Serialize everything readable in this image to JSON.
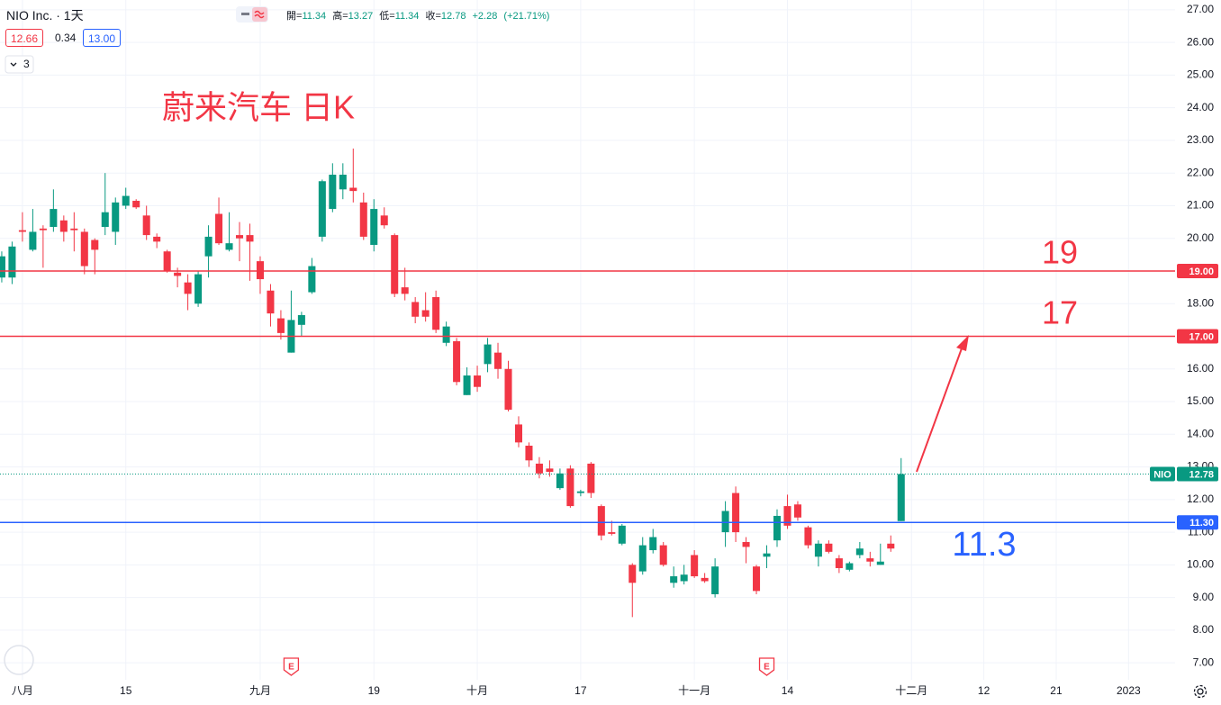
{
  "chart_data": {
    "type": "candlestick",
    "title": "NIO Inc. · 1天",
    "annotation": "蔚来汽车 日K",
    "legend": {
      "open_label": "開=",
      "high_label": "高=",
      "low_label": "低=",
      "close_label": "收=",
      "change": {
        "value": 2.28,
        "label": "+2.28"
      },
      "change_pct": {
        "value": 21.71,
        "label": "(+21.71%)"
      }
    },
    "bid": 12.66,
    "spread": 0.34,
    "ask": {
      "value": 13,
      "label": "13.00"
    },
    "indicators": 3,
    "up_color": "#089981",
    "down_color": "#f23645",
    "open": [
      18.8,
      18.8,
      20.25,
      19.65,
      20.3,
      20.35,
      20.55,
      20.3,
      20.2,
      19.95,
      20.35,
      20.2,
      21.0,
      21.15,
      20.7,
      20.05,
      19.6,
      18.95,
      18.65,
      18.0,
      19.45,
      20.75,
      19.65,
      20.1,
      20.1,
      19.3,
      18.4,
      17.55,
      16.5,
      17.35,
      18.35,
      20.05,
      20.9,
      21.5,
      21.55,
      21.1,
      19.8,
      20.7,
      20.1,
      18.5,
      18.05,
      17.8,
      18.2,
      16.8,
      16.85,
      15.2,
      15.8,
      16.15,
      16.5,
      16.0,
      14.3,
      13.65,
      13.1,
      12.95,
      12.35,
      12.95,
      12.2,
      13.1,
      11.8,
      11.0,
      10.65,
      10.0,
      9.8,
      10.45,
      10.6,
      9.45,
      9.5,
      10.3,
      9.6,
      9.1,
      11.0,
      12.2,
      10.7,
      9.95,
      10.25,
      10.75,
      11.8,
      11.85,
      11.15,
      10.25,
      10.65,
      10.2,
      9.85,
      10.3,
      10.2,
      10.0,
      10.65,
      11.34
    ],
    "high": [
      19.6,
      19.9,
      20.8,
      20.9,
      20.4,
      21.5,
      20.7,
      20.8,
      20.3,
      20.0,
      22.0,
      21.25,
      21.55,
      21.2,
      21.0,
      20.15,
      19.65,
      19.1,
      18.9,
      19.0,
      20.4,
      21.25,
      20.8,
      20.5,
      20.45,
      19.45,
      18.6,
      17.8,
      18.4,
      17.75,
      19.4,
      21.8,
      22.3,
      22.3,
      22.75,
      21.4,
      21.2,
      20.95,
      20.15,
      19.1,
      18.2,
      18.35,
      18.4,
      17.45,
      16.95,
      16.05,
      16.1,
      16.95,
      16.8,
      16.25,
      14.55,
      13.75,
      13.3,
      13.2,
      12.95,
      13.05,
      12.3,
      13.15,
      11.85,
      11.35,
      11.25,
      10.05,
      10.85,
      11.1,
      10.7,
      9.95,
      10.0,
      10.45,
      9.75,
      10.2,
      11.95,
      12.4,
      10.85,
      10.0,
      10.6,
      11.7,
      12.15,
      11.95,
      11.2,
      10.75,
      10.75,
      10.3,
      10.1,
      10.7,
      10.4,
      10.65,
      10.9,
      13.27
    ],
    "low": [
      18.65,
      18.6,
      19.9,
      19.6,
      19.1,
      20.2,
      19.9,
      19.6,
      18.9,
      18.9,
      20.1,
      19.8,
      20.9,
      20.9,
      19.95,
      19.7,
      18.95,
      18.5,
      17.8,
      17.9,
      18.8,
      19.8,
      19.6,
      19.3,
      18.7,
      18.3,
      17.3,
      16.9,
      16.5,
      17.0,
      18.3,
      19.9,
      20.8,
      21.2,
      21.1,
      19.95,
      19.6,
      20.3,
      18.2,
      18.1,
      17.4,
      17.45,
      17.1,
      16.7,
      15.5,
      15.2,
      15.3,
      15.9,
      15.7,
      14.7,
      13.6,
      13.0,
      12.65,
      12.7,
      12.3,
      11.75,
      12.1,
      12.05,
      10.75,
      10.9,
      10.6,
      8.4,
      9.7,
      10.35,
      9.95,
      9.3,
      9.4,
      9.6,
      9.45,
      9.0,
      10.55,
      10.7,
      10.05,
      9.1,
      9.9,
      10.55,
      11.1,
      11.35,
      10.5,
      9.95,
      10.35,
      9.75,
      9.8,
      10.2,
      9.95,
      10.0,
      10.4,
      11.34
    ],
    "close": [
      19.45,
      19.75,
      20.2,
      20.2,
      20.25,
      20.9,
      20.2,
      20.25,
      19.15,
      19.65,
      20.8,
      21.1,
      21.3,
      20.95,
      20.1,
      19.9,
      19.0,
      18.85,
      18.3,
      18.9,
      20.05,
      19.85,
      19.85,
      20.0,
      19.9,
      18.75,
      17.7,
      17.1,
      17.5,
      17.65,
      19.15,
      21.75,
      21.95,
      21.95,
      21.45,
      20.05,
      20.9,
      20.4,
      18.3,
      18.3,
      17.6,
      17.6,
      17.2,
      17.3,
      15.6,
      15.8,
      15.45,
      16.75,
      16.0,
      14.75,
      13.75,
      13.2,
      12.8,
      12.85,
      12.8,
      11.8,
      12.25,
      12.2,
      10.9,
      10.95,
      11.2,
      9.45,
      10.6,
      10.85,
      10.0,
      9.65,
      9.7,
      9.65,
      9.5,
      9.95,
      11.65,
      11.0,
      10.55,
      9.2,
      10.35,
      11.5,
      11.2,
      11.45,
      10.6,
      10.65,
      10.4,
      9.9,
      10.05,
      10.5,
      10.1,
      10.1,
      10.5,
      12.78
    ],
    "last_price": {
      "symbol": "NIO",
      "color": "#089981"
    },
    "xlim": [
      -0.17,
      113.5
    ],
    "xticks": [
      {
        "value": 2,
        "label": "八月"
      },
      {
        "value": 12,
        "label": "15"
      },
      {
        "value": 25,
        "label": "九月"
      },
      {
        "value": 36,
        "label": "19"
      },
      {
        "value": 46,
        "label": "十月"
      },
      {
        "value": 56,
        "label": "17"
      },
      {
        "value": 67,
        "label": "十一月"
      },
      {
        "value": 76,
        "label": "14"
      },
      {
        "value": 88,
        "label": "十二月"
      },
      {
        "value": 95,
        "label": "12"
      },
      {
        "value": 102,
        "label": "21"
      },
      {
        "value": 109,
        "label": "2023"
      }
    ],
    "ylim": [
      6.48,
      27.3
    ],
    "yticks": [
      {
        "value": 7,
        "label": "7.00"
      },
      {
        "value": 8,
        "label": "8.00"
      },
      {
        "value": 9,
        "label": "9.00"
      },
      {
        "value": 10,
        "label": "10.00"
      },
      {
        "value": 11,
        "label": "11.00"
      },
      {
        "value": 12,
        "label": "12.00"
      },
      {
        "value": 13,
        "label": "13.00"
      },
      {
        "value": 14,
        "label": "14.00"
      },
      {
        "value": 15,
        "label": "15.00"
      },
      {
        "value": 16,
        "label": "16.00"
      },
      {
        "value": 17,
        "label": "17.00"
      },
      {
        "value": 18,
        "label": "18.00"
      },
      {
        "value": 19,
        "label": "19.00"
      },
      {
        "value": 20,
        "label": "20.00"
      },
      {
        "value": 21,
        "label": "21.00"
      },
      {
        "value": 22,
        "label": "22.00"
      },
      {
        "value": 23,
        "label": "23.00"
      },
      {
        "value": 24,
        "label": "24.00"
      },
      {
        "value": 25,
        "label": "25.00"
      },
      {
        "value": 26,
        "label": "26.00"
      },
      {
        "value": 27,
        "label": "27.00"
      }
    ],
    "hlines": [
      {
        "value": 19,
        "axis_label": "19.00",
        "annotation": 19,
        "color": "#f23645"
      },
      {
        "value": 17,
        "axis_label": "17.00",
        "annotation": 17,
        "color": "#f23645"
      },
      {
        "value": 11.3,
        "axis_label": "11.30",
        "annotation": 11.3,
        "color": "#2962ff"
      }
    ],
    "events": [
      {
        "x": 28,
        "label": "E"
      },
      {
        "x": 74,
        "label": "E"
      }
    ],
    "grid": true
  }
}
